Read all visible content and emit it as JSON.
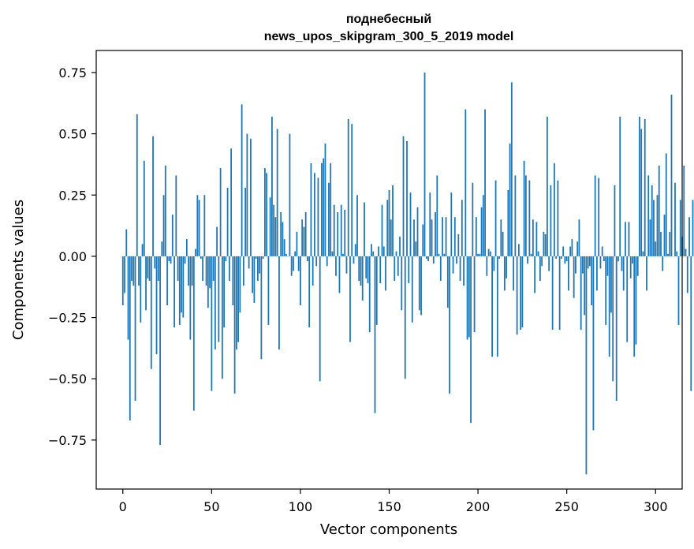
{
  "chart_data": {
    "type": "bar",
    "title_line1": "поднебесный",
    "title_line2": "news_upos_skipgram_300_5_2019 model",
    "xlabel": "Vector components",
    "ylabel": "Components values",
    "xlim": [
      -15,
      315
    ],
    "ylim": [
      -0.95,
      0.84
    ],
    "x_ticks": [
      0,
      50,
      100,
      150,
      200,
      250,
      300
    ],
    "x_tick_labels": [
      "0",
      "50",
      "100",
      "150",
      "200",
      "250",
      "300"
    ],
    "y_ticks": [
      0.75,
      0.5,
      0.25,
      0.0,
      -0.25,
      -0.5,
      -0.75
    ],
    "y_tick_labels": [
      "0.75",
      "0.50",
      "0.25",
      "0.00",
      "−0.25",
      "−0.50",
      "−0.75"
    ],
    "bar_color": "#1f77b4",
    "values": [
      -0.2,
      -0.15,
      0.11,
      -0.34,
      -0.67,
      -0.1,
      -0.12,
      -0.59,
      0.58,
      -0.12,
      -0.27,
      0.05,
      0.39,
      -0.22,
      -0.09,
      -0.1,
      -0.46,
      0.49,
      -0.05,
      -0.4,
      -0.1,
      -0.77,
      0.06,
      0.25,
      0.37,
      -0.2,
      -0.02,
      -0.03,
      0.17,
      -0.29,
      0.33,
      -0.1,
      -0.28,
      -0.23,
      -0.25,
      -0.03,
      0.07,
      -0.12,
      -0.34,
      -0.12,
      -0.63,
      0.03,
      0.25,
      0.23,
      -0.01,
      -0.1,
      0.25,
      -0.12,
      -0.21,
      -0.13,
      -0.55,
      -0.1,
      -0.38,
      0.12,
      -0.35,
      0.36,
      -0.5,
      -0.29,
      -0.02,
      0.28,
      -0.1,
      0.44,
      -0.2,
      -0.56,
      -0.38,
      -0.35,
      -0.23,
      0.62,
      -0.12,
      0.28,
      0.5,
      -0.05,
      0.48,
      -0.15,
      -0.19,
      -0.01,
      -0.1,
      -0.07,
      -0.42,
      -0.01,
      0.36,
      0.34,
      -0.28,
      0.24,
      0.57,
      0.21,
      0.16,
      0.52,
      -0.38,
      0.18,
      0.14,
      0.07,
      0.01,
      0.0,
      0.5,
      -0.08,
      -0.06,
      0.02,
      0.1,
      -0.06,
      -0.2,
      0.15,
      0.12,
      0.18,
      -0.02,
      -0.29,
      0.38,
      -0.12,
      0.34,
      -0.04,
      0.32,
      -0.51,
      0.38,
      0.4,
      0.46,
      -0.04,
      0.3,
      0.38,
      0.02,
      0.21,
      -0.08,
      0.18,
      -0.15,
      0.21,
      0.01,
      0.19,
      -0.07,
      0.56,
      -0.35,
      0.54,
      -0.03,
      0.05,
      0.25,
      -0.1,
      -0.12,
      -0.18,
      0.22,
      -0.09,
      -0.11,
      -0.31,
      0.05,
      0.02,
      -0.64,
      -0.28,
      0.04,
      -0.11,
      0.21,
      0.04,
      -0.14,
      0.23,
      0.27,
      0.15,
      0.29,
      -0.1,
      0.02,
      -0.08,
      0.08,
      -0.22,
      0.49,
      -0.5,
      0.47,
      -0.11,
      0.26,
      -0.27,
      0.15,
      0.06,
      0.2,
      -0.22,
      -0.24,
      0.13,
      0.75,
      -0.01,
      -0.02,
      0.26,
      0.15,
      -0.03,
      0.18,
      0.33,
      0.01,
      -0.1,
      0.16,
      0.01,
      0.16,
      -0.21,
      -0.56,
      0.26,
      -0.07,
      0.16,
      -0.03,
      0.09,
      -0.1,
      0.23,
      -0.12,
      0.6,
      -0.34,
      -0.33,
      -0.68,
      0.3,
      -0.31,
      0.16,
      0.01,
      0.01,
      0.2,
      0.25,
      0.6,
      -0.08,
      0.03,
      0.02,
      -0.41,
      -0.06,
      0.31,
      -0.41,
      -0.01,
      0.15,
      0.1,
      -0.14,
      -0.09,
      0.27,
      0.46,
      0.71,
      -0.14,
      0.33,
      -0.32,
      0.05,
      -0.3,
      -0.29,
      0.39,
      0.33,
      -0.03,
      0.31,
      0.01,
      0.15,
      -0.15,
      0.14,
      0.02,
      -0.1,
      -0.04,
      0.1,
      0.09,
      0.57,
      -0.06,
      0.29,
      -0.3,
      0.38,
      -0.01,
      0.31,
      -0.3,
      -0.01,
      0.04,
      -0.03,
      -0.02,
      -0.14,
      0.04,
      0.07,
      -0.17,
      -0.07,
      0.06,
      0.15,
      -0.3,
      -0.07,
      -0.24,
      -0.89,
      -0.05,
      -0.04,
      -0.2,
      -0.71,
      0.33,
      -0.14,
      0.32,
      -0.05,
      0.04,
      -0.02,
      -0.28,
      -0.08,
      -0.41,
      -0.23,
      -0.51,
      0.29,
      -0.59,
      -0.02,
      0.57,
      -0.06,
      -0.14,
      0.14,
      -0.35,
      0.14,
      -0.09,
      -0.03,
      -0.41,
      -0.36,
      -0.08,
      0.57,
      0.52,
      0.02,
      0.56,
      -0.14,
      0.33,
      0.15,
      0.29,
      0.23,
      0.06,
      0.25,
      0.37,
      0.1,
      -0.06,
      0.17,
      0.42,
      0.01,
      0.1,
      0.66,
      0.0,
      0.3,
      0.02,
      -0.28,
      0.23,
      0.08,
      0.37,
      0.03,
      -0.15,
      0.16,
      -0.55,
      0.23
    ]
  }
}
